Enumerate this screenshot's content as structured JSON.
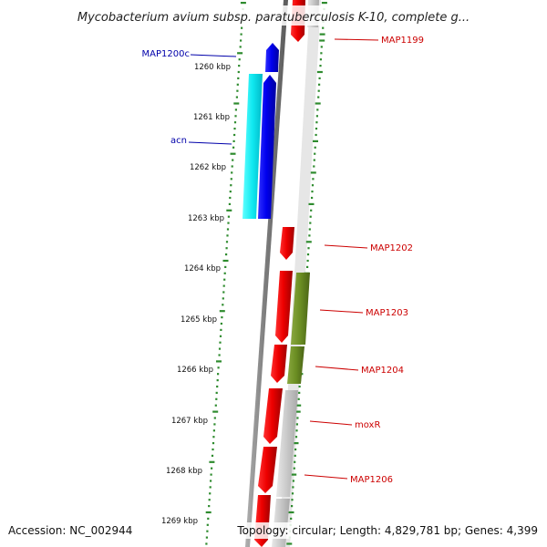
{
  "header": {
    "title": "Mycobacterium avium subsp. paratuberculosis K-10, complete g..."
  },
  "footer": {
    "accession": "Accession: NC_002944",
    "topology": "Topology: circular; Length: 4,829,781 bp; Genes: 4,399"
  },
  "colors": {
    "backbone": "#8a8a8a",
    "ring_dots": "#2e8b2e",
    "label_red": "#cc0000",
    "label_blue": "#0000aa"
  },
  "scale": {
    "unit": "kbp",
    "ticks": [
      "1260 kbp",
      "1261 kbp",
      "1262 kbp",
      "1263 kbp",
      "1264 kbp",
      "1265 kbp",
      "1266 kbp",
      "1267 kbp",
      "1268 kbp",
      "1269 kbp"
    ]
  },
  "gene_labels": [
    {
      "name": "MAP1199",
      "color": "#cc0000"
    },
    {
      "name": "MAP1200c",
      "color": "#0000aa"
    },
    {
      "name": "acn",
      "color": "#0000aa"
    },
    {
      "name": "MAP1202",
      "color": "#cc0000"
    },
    {
      "name": "MAP1203",
      "color": "#cc0000"
    },
    {
      "name": "MAP1204",
      "color": "#cc0000"
    },
    {
      "name": "moxR",
      "color": "#cc0000"
    },
    {
      "name": "MAP1206",
      "color": "#cc0000"
    }
  ]
}
